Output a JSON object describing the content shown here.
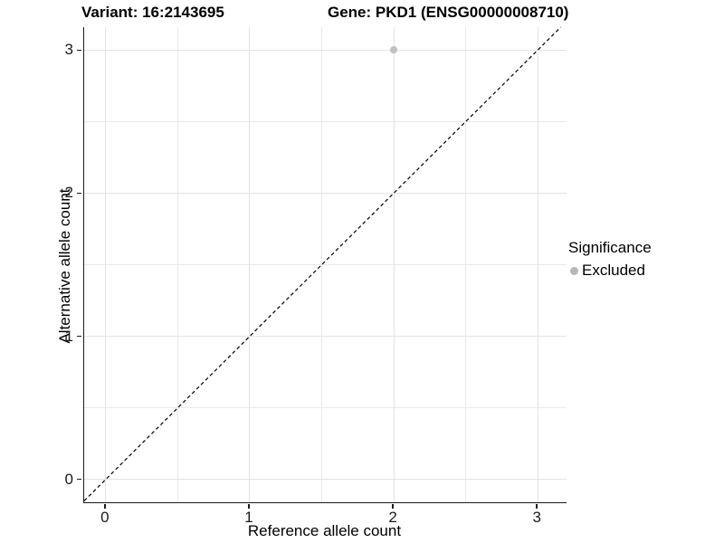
{
  "titles": {
    "left": "Variant: 16:2143695",
    "right": "Gene: PKD1 (ENSG00000008710)"
  },
  "legend": {
    "title": "Significance",
    "items": [
      {
        "label": "Excluded",
        "color": "#b7b7b7"
      }
    ]
  },
  "chart_data": {
    "type": "scatter",
    "xlabel": "Reference allele count",
    "ylabel": "Alternative allele count",
    "xlim": [
      -0.15,
      3.2
    ],
    "ylim": [
      -0.16,
      3.16
    ],
    "xticks": [
      0,
      1,
      2,
      3
    ],
    "yticks": [
      0,
      1,
      2,
      3
    ],
    "minor_ticks": [
      0.5,
      1.5,
      2.5
    ],
    "grid": true,
    "points": [
      {
        "x": 2,
        "y": 3,
        "series": "Excluded"
      }
    ],
    "identity_line": {
      "equation": "y = x",
      "style": "dashed",
      "color": "#000000"
    },
    "legend_position": "right"
  },
  "colors": {
    "grid_major": "#e3e3e3",
    "grid_minor": "#e9e9e9",
    "axis": "#1a1a1a",
    "point": "#c0c0c0",
    "background": "#ffffff"
  }
}
